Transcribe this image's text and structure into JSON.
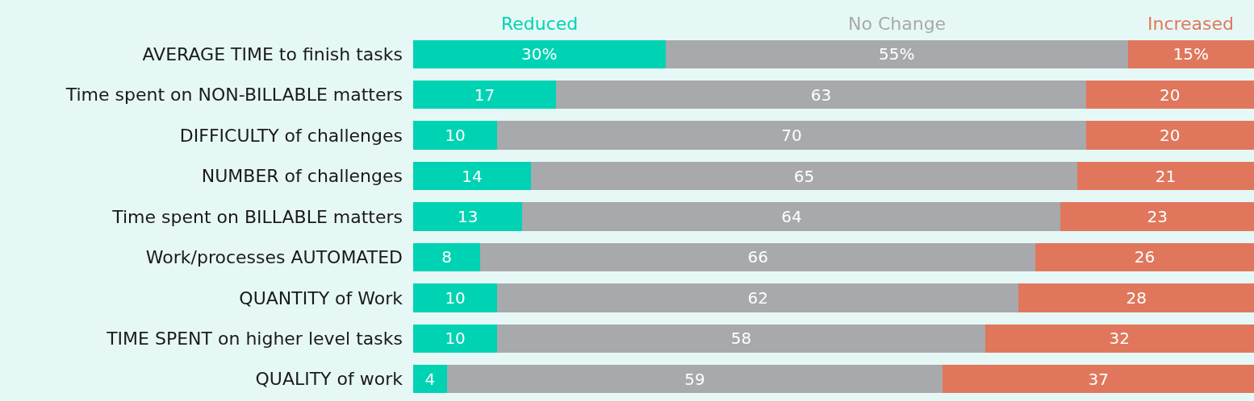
{
  "chart_data": {
    "type": "bar",
    "orientation": "horizontal",
    "stacked": true,
    "categories": [
      "AVERAGE TIME to finish tasks",
      "Time spent on NON-BILLABLE matters",
      "DIFFICULTY of challenges",
      "NUMBER of challenges",
      "Time spent on BILLABLE matters",
      "Work/processes AUTOMATED",
      "QUANTITY of Work",
      "TIME SPENT on higher level tasks",
      "QUALITY of work"
    ],
    "series": [
      {
        "name": "Reduced",
        "color": "#00d3b3",
        "values": [
          30,
          17,
          10,
          14,
          13,
          8,
          10,
          10,
          4
        ],
        "value_labels": [
          "30%",
          "17",
          "10",
          "14",
          "13",
          "8",
          "10",
          "10",
          "4"
        ]
      },
      {
        "name": "No Change",
        "color": "#a8a9ac",
        "values": [
          55,
          63,
          70,
          65,
          64,
          66,
          62,
          58,
          59
        ],
        "value_labels": [
          "55%",
          "63",
          "70",
          "65",
          "64",
          "66",
          "62",
          "58",
          "59"
        ]
      },
      {
        "name": "Increased",
        "color": "#e0775c",
        "values": [
          15,
          20,
          20,
          21,
          23,
          26,
          28,
          32,
          37
        ],
        "value_labels": [
          "15%",
          "20",
          "20",
          "21",
          "23",
          "26",
          "28",
          "32",
          "37"
        ]
      }
    ],
    "xlim": [
      0,
      100
    ],
    "tick_labels": "y",
    "grid": false
  }
}
